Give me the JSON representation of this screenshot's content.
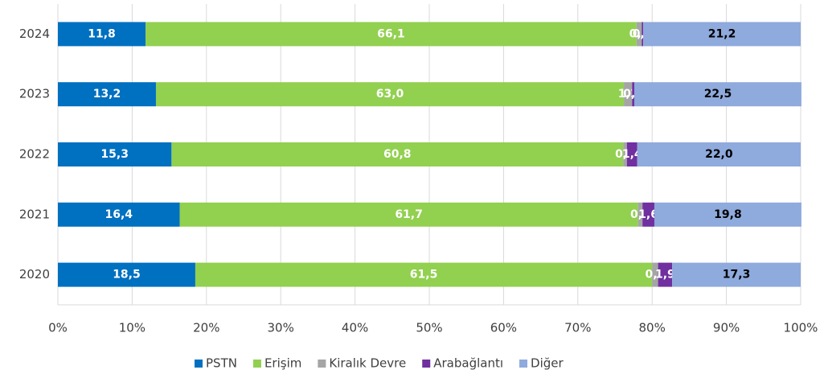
{
  "chart_data": {
    "type": "stacked_barh",
    "categories": [
      "2024",
      "2023",
      "2022",
      "2021",
      "2020"
    ],
    "series": [
      {
        "name": "PSTN",
        "color": "#0070c0",
        "values": [
          11.8,
          13.2,
          15.3,
          16.4,
          18.5
        ],
        "value_labels": [
          "11,8",
          "13,2",
          "15,3",
          "16,4",
          "18,5"
        ]
      },
      {
        "name": "Erişim",
        "color": "#92d050",
        "values": [
          66.1,
          63.0,
          60.8,
          61.7,
          61.5
        ],
        "value_labels": [
          "66,1",
          "63,0",
          "60,8",
          "61,7",
          "61,5"
        ]
      },
      {
        "name": "Kiralık Devre",
        "color": "#a5a5a5",
        "values": [
          0.7,
          1.1,
          0.5,
          0.6,
          0.8
        ],
        "value_labels": [
          "0,7",
          "1,1",
          "0,5",
          "0,6",
          "0,8"
        ]
      },
      {
        "name": "Arabağlantı",
        "color": "#7030a0",
        "values": [
          0.2,
          0.3,
          1.4,
          1.6,
          1.9
        ],
        "value_labels": [
          "0,2",
          "0,3",
          "1,4",
          "1,6",
          "1,9"
        ]
      },
      {
        "name": "Diğer",
        "color": "#8faadc",
        "values": [
          21.2,
          22.5,
          22.0,
          19.8,
          17.3
        ],
        "value_labels": [
          "21,2",
          "22,5",
          "22,0",
          "19,8",
          "17,3"
        ]
      }
    ],
    "xlim": [
      0,
      100
    ],
    "xticks": [
      {
        "value": 0,
        "label": "0%"
      },
      {
        "value": 10,
        "label": "10%"
      },
      {
        "value": 20,
        "label": "20%"
      },
      {
        "value": 30,
        "label": "30%"
      },
      {
        "value": 40,
        "label": "40%"
      },
      {
        "value": 50,
        "label": "50%"
      },
      {
        "value": 60,
        "label": "60%"
      },
      {
        "value": 70,
        "label": "70%"
      },
      {
        "value": 80,
        "label": "80%"
      },
      {
        "value": 90,
        "label": "90%"
      },
      {
        "value": 100,
        "label": "100%"
      }
    ],
    "grid": true,
    "legend": "bottom"
  }
}
